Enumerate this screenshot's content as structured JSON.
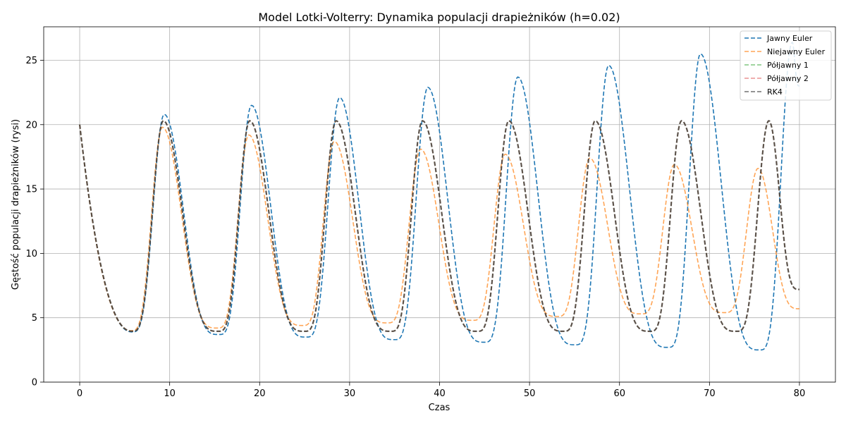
{
  "chart_data": {
    "type": "line",
    "title": "Model Lotki-Volterry: Dynamika populacji drapieżników (h=0.02)",
    "xlabel": "Czas",
    "ylabel": "Gęstość populacji drapieżników (rysi)",
    "xlim": [
      -4,
      84
    ],
    "ylim": [
      0,
      27.6
    ],
    "xticks": [
      0,
      10,
      20,
      30,
      40,
      50,
      60,
      70,
      80
    ],
    "yticks": [
      0,
      5,
      10,
      15,
      20,
      25
    ],
    "grid": true,
    "legend_position": "top-right",
    "series": [
      {
        "name": "Jawny Euler",
        "color": "#1f77b4",
        "opacity": 1,
        "start": 20,
        "peaks": [
          [
            9.4,
            20.8
          ],
          [
            19.1,
            21.5
          ],
          [
            28.9,
            22.1
          ],
          [
            38.7,
            22.9
          ],
          [
            48.7,
            23.7
          ],
          [
            58.8,
            24.6
          ],
          [
            69.0,
            25.5
          ],
          [
            79.2,
            26.4
          ]
        ],
        "troughs": [
          [
            5.8,
            3.9
          ],
          [
            15.5,
            3.7
          ],
          [
            25.2,
            3.5
          ],
          [
            35.0,
            3.3
          ],
          [
            45.0,
            3.1
          ],
          [
            55.1,
            2.9
          ],
          [
            65.4,
            2.7
          ],
          [
            75.6,
            2.5
          ]
        ],
        "end": [
          80,
          23.0
        ]
      },
      {
        "name": "Niejawny Euler",
        "color": "#ff7f0e",
        "opacity": 0.7,
        "start": 20,
        "peaks": [
          [
            9.2,
            19.8
          ],
          [
            18.8,
            19.2
          ],
          [
            28.3,
            18.7
          ],
          [
            37.9,
            18.1
          ],
          [
            47.3,
            17.7
          ],
          [
            56.7,
            17.4
          ],
          [
            66.1,
            16.9
          ],
          [
            75.4,
            16.6
          ]
        ],
        "troughs": [
          [
            5.7,
            4.0
          ],
          [
            15.3,
            4.2
          ],
          [
            24.8,
            4.4
          ],
          [
            34.2,
            4.6
          ],
          [
            43.7,
            4.8
          ],
          [
            53.1,
            5.1
          ],
          [
            62.4,
            5.3
          ],
          [
            71.7,
            5.4
          ]
        ],
        "end": [
          80,
          5.7
        ]
      },
      {
        "name": "Półjawny 1",
        "color": "#2ca02c",
        "opacity": 0.6,
        "start": 20,
        "peaks": [
          [
            9.3,
            20.3
          ],
          [
            18.9,
            20.3
          ],
          [
            28.5,
            20.3
          ],
          [
            38.1,
            20.3
          ],
          [
            47.7,
            20.3
          ],
          [
            57.3,
            20.3
          ],
          [
            66.9,
            20.3
          ],
          [
            76.6,
            20.3
          ]
        ],
        "troughs": [
          [
            5.8,
            3.95
          ],
          [
            15.4,
            3.95
          ],
          [
            25.0,
            3.95
          ],
          [
            34.6,
            3.95
          ],
          [
            44.2,
            3.95
          ],
          [
            53.8,
            3.95
          ],
          [
            63.4,
            3.95
          ],
          [
            73.0,
            3.95
          ]
        ],
        "end": [
          80,
          7.2
        ]
      },
      {
        "name": "Półjawny 2",
        "color": "#d62728",
        "opacity": 0.5,
        "start": 20,
        "peaks": [
          [
            9.3,
            20.3
          ],
          [
            18.9,
            20.3
          ],
          [
            28.5,
            20.3
          ],
          [
            38.1,
            20.3
          ],
          [
            47.7,
            20.3
          ],
          [
            57.3,
            20.3
          ],
          [
            66.9,
            20.3
          ],
          [
            76.6,
            20.3
          ]
        ],
        "troughs": [
          [
            5.8,
            3.95
          ],
          [
            15.4,
            3.95
          ],
          [
            25.0,
            3.95
          ],
          [
            34.6,
            3.95
          ],
          [
            44.2,
            3.95
          ],
          [
            53.8,
            3.95
          ],
          [
            63.4,
            3.95
          ],
          [
            73.0,
            3.95
          ]
        ],
        "end": [
          80,
          7.2
        ]
      },
      {
        "name": "RK4",
        "color": "#404040",
        "opacity": 0.75,
        "start": 20,
        "peaks": [
          [
            9.3,
            20.3
          ],
          [
            18.9,
            20.3
          ],
          [
            28.5,
            20.3
          ],
          [
            38.1,
            20.3
          ],
          [
            47.7,
            20.3
          ],
          [
            57.3,
            20.3
          ],
          [
            66.9,
            20.3
          ],
          [
            76.6,
            20.3
          ]
        ],
        "troughs": [
          [
            5.8,
            3.95
          ],
          [
            15.4,
            3.95
          ],
          [
            25.0,
            3.95
          ],
          [
            34.6,
            3.95
          ],
          [
            44.2,
            3.95
          ],
          [
            53.8,
            3.95
          ],
          [
            63.4,
            3.95
          ],
          [
            73.0,
            3.95
          ]
        ],
        "end": [
          80,
          7.2
        ]
      }
    ]
  }
}
